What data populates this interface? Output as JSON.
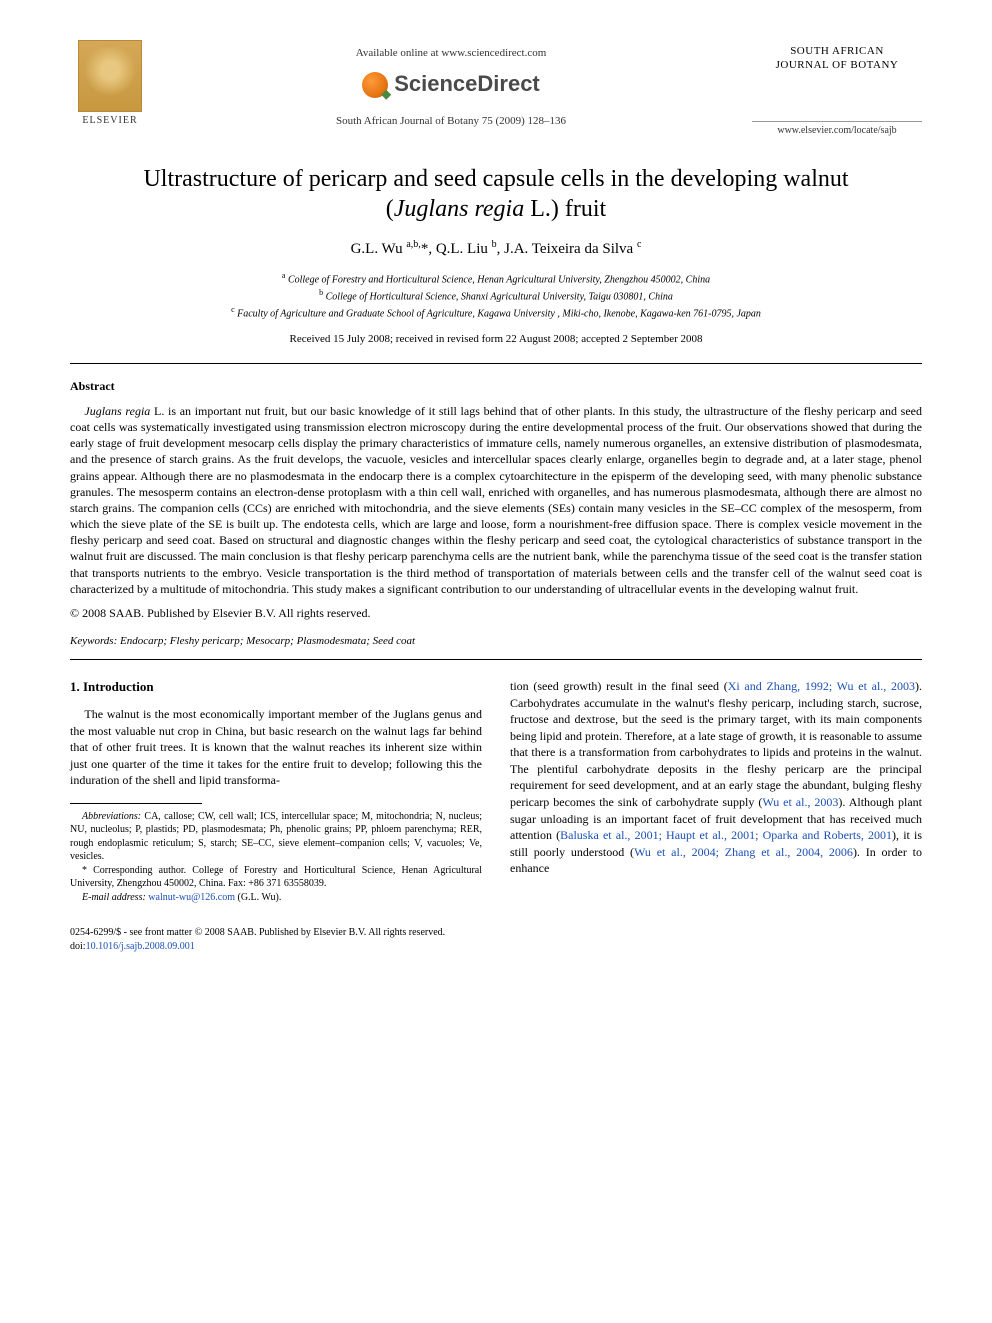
{
  "header": {
    "publisher": "ELSEVIER",
    "available_line": "Available online at www.sciencedirect.com",
    "sciencedirect": "ScienceDirect",
    "journal_ref": "South African Journal of Botany 75 (2009) 128–136",
    "journal_name_line1": "SOUTH AFRICAN",
    "journal_name_line2": "JOURNAL OF BOTANY",
    "journal_url": "www.elsevier.com/locate/sajb"
  },
  "title_line1": "Ultrastructure of pericarp and seed capsule cells in the developing walnut",
  "title_line2_pre": "(",
  "title_line2_species": "Juglans regia",
  "title_line2_post": " L.) fruit",
  "authors": "G.L. Wu a,b,*, Q.L. Liu b, J.A. Teixeira da Silva c",
  "affil_a": "a College of Forestry and Horticultural Science, Henan Agricultural University, Zhengzhou 450002, China",
  "affil_b": "b College of Horticultural Science, Shanxi Agricultural University, Taigu 030801, China",
  "affil_c": "c Faculty of Agriculture and Graduate School of Agriculture, Kagawa University , Miki-cho, Ikenobe, Kagawa-ken 761-0795, Japan",
  "dates": "Received 15 July 2008; received in revised form 22 August 2008; accepted 2 September 2008",
  "abstract_heading": "Abstract",
  "abstract_species": "Juglans regia",
  "abstract_body_after_species": " L. is an important nut fruit, but our basic knowledge of it still lags behind that of other plants. In this study, the ultrastructure of the fleshy pericarp and seed coat cells was systematically investigated using transmission electron microscopy during the entire developmental process of the fruit. Our observations showed that during the early stage of fruit development mesocarp cells display the primary characteristics of immature cells, namely numerous organelles, an extensive distribution of plasmodesmata, and the presence of starch grains. As the fruit develops, the vacuole, vesicles and intercellular spaces clearly enlarge, organelles begin to degrade and, at a later stage, phenol grains appear. Although there are no plasmodesmata in the endocarp there is a complex cytoarchitecture in the episperm of the developing seed, with many phenolic substance granules. The mesosperm contains an electron-dense protoplasm with a thin cell wall, enriched with organelles, and has numerous plasmodesmata, although there are almost no starch grains. The companion cells (CCs) are enriched with mitochondria, and the sieve elements (SEs) contain many vesicles in the SE–CC complex of the mesosperm, from which the sieve plate of the SE is built up. The endotesta cells, which are large and loose, form a nourishment-free diffusion space. There is complex vesicle movement in the fleshy pericarp and seed coat. Based on structural and diagnostic changes within the fleshy pericarp and seed coat, the cytological characteristics of substance transport in the walnut fruit are discussed. The main conclusion is that fleshy pericarp parenchyma cells are the nutrient bank, while the parenchyma tissue of the seed coat is the transfer station that transports nutrients to the embryo. Vesicle transportation is the third method of transportation of materials between cells and the transfer cell of the walnut seed coat is characterized by a multitude of mitochondria. This study makes a significant contribution to our understanding of ultracellular events in the developing walnut fruit.",
  "copyright": "© 2008 SAAB. Published by Elsevier B.V. All rights reserved.",
  "keywords_label": "Keywords:",
  "keywords_text": " Endocarp; Fleshy pericarp; Mesocarp; Plasmodesmata; Seed coat",
  "intro_heading": "1. Introduction",
  "intro_left_pre": "The walnut is the most economically important member of the ",
  "intro_left_species": "Juglans",
  "intro_left_post": " genus and the most valuable nut crop in China, but basic research on the walnut lags far behind that of other fruit trees. It is known that the walnut reaches its inherent size within just one quarter of the time it takes for the entire fruit to develop; following this the induration of the shell and lipid transforma-",
  "intro_right_1_pre": "tion (seed growth) result in the final seed (",
  "intro_right_1_ref1": "Xi and Zhang, 1992; Wu et al., 2003",
  "intro_right_1_mid": "). Carbohydrates accumulate in the walnut's fleshy pericarp, including starch, sucrose, fructose and dextrose, but the seed is the primary target, with its main components being lipid and protein. Therefore, at a late stage of growth, it is reasonable to assume that there is a transformation from carbohydrates to lipids and proteins in the walnut. The plentiful carbohydrate deposits in the fleshy pericarp are the principal requirement for seed development, and at an early stage the abundant, bulging fleshy pericarp becomes the sink of carbohydrate supply (",
  "intro_right_1_ref2": "Wu et al., 2003",
  "intro_right_1_mid2": "). Although plant sugar unloading is an important facet of fruit development that has received much attention (",
  "intro_right_1_ref3": "Baluska et al., 2001; Haupt et al., 2001; Oparka and Roberts, 2001",
  "intro_right_1_mid3": "), it is still poorly understood (",
  "intro_right_1_ref4": "Wu et al., 2004; Zhang et al., 2004, 2006",
  "intro_right_1_end": "). In order to enhance",
  "footnotes": {
    "abbrev_label": "Abbreviations:",
    "abbrev_text": " CA, callose; CW, cell wall; ICS, intercellular space; M, mitochondria; N, nucleus; NU, nucleolus; P, plastids; PD, plasmodesmata; Ph, phenolic grains; PP, phloem parenchyma; RER, rough endoplasmic reticulum; S, starch; SE–CC, sieve element–companion cells; V, vacuoles; Ve, vesicles.",
    "corresp_text": "* Corresponding author. College of Forestry and Horticultural Science, Henan Agricultural University, Zhengzhou 450002, China. Fax: +86 371 63558039.",
    "email_label": "E-mail address:",
    "email": " walnut-wu@126.com",
    "email_who": " (G.L. Wu)."
  },
  "bottom": {
    "line1": "0254-6299/$ - see front matter © 2008 SAAB. Published by Elsevier B.V. All rights reserved.",
    "doi_label": "doi:",
    "doi": "10.1016/j.sajb.2008.09.001"
  },
  "colors": {
    "link": "#1a4fb5",
    "text": "#000000",
    "orange": "#e67612"
  }
}
